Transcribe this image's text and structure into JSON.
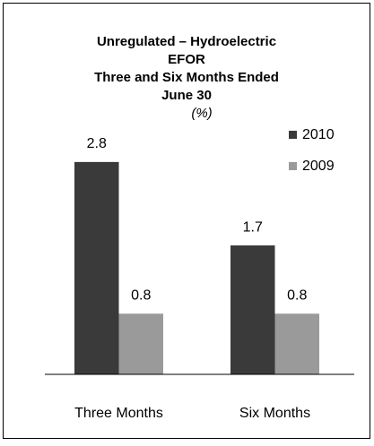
{
  "chart_data": {
    "type": "bar",
    "title": [
      "Unregulated  –  Hydroelectric",
      "EFOR",
      "Three and Six Months Ended",
      "June 30"
    ],
    "subtitle": "(%)",
    "categories": [
      "Three Months",
      "Six Months"
    ],
    "series": [
      {
        "name": "2010",
        "color": "#3a3a3a",
        "values": [
          2.8,
          1.7
        ]
      },
      {
        "name": "2009",
        "color": "#9a9a9a",
        "values": [
          0.8,
          0.8
        ]
      }
    ],
    "ylim": [
      0,
      3.2
    ],
    "legend": "top-right"
  }
}
